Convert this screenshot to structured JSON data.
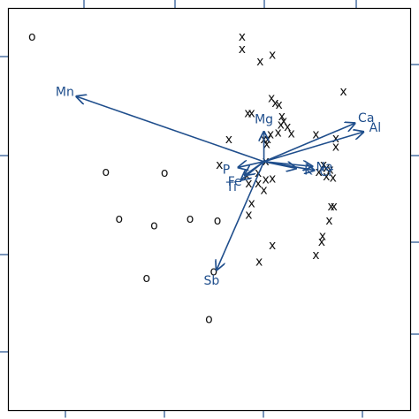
{
  "chart_data": {
    "type": "scatter",
    "title": "",
    "xlabel": "",
    "ylabel": "",
    "xlim": [
      -2.7,
      1.55
    ],
    "ylim": [
      -2.6,
      1.6
    ],
    "grid": false,
    "colors": {
      "points": "#111111",
      "vectors": "#1f4e8c",
      "frame": "#000000",
      "ticks": "#1f4e8c"
    },
    "series": [
      {
        "marker": "o",
        "points": [
          [
            -2.45,
            1.3
          ],
          [
            -1.67,
            -0.11
          ],
          [
            -1.05,
            -0.12
          ],
          [
            -1.53,
            -0.6
          ],
          [
            -1.16,
            -0.67
          ],
          [
            -0.78,
            -0.6
          ],
          [
            -0.49,
            -0.62
          ],
          [
            -1.24,
            -1.22
          ],
          [
            -0.53,
            -1.15
          ],
          [
            -0.58,
            -1.65
          ]
        ]
      },
      {
        "marker": "x",
        "points": [
          [
            -0.23,
            1.3
          ],
          [
            -0.23,
            1.17
          ],
          [
            0.09,
            1.11
          ],
          [
            -0.04,
            1.04
          ],
          [
            0.84,
            0.73
          ],
          [
            0.08,
            0.66
          ],
          [
            0.12,
            0.61
          ],
          [
            0.16,
            0.59
          ],
          [
            -0.17,
            0.5
          ],
          [
            -0.13,
            0.5
          ],
          [
            0.19,
            0.47
          ],
          [
            0.21,
            0.42
          ],
          [
            0.18,
            0.38
          ],
          [
            0.25,
            0.36
          ],
          [
            0.15,
            0.3
          ],
          [
            0.07,
            0.28
          ],
          [
            0.29,
            0.29
          ],
          [
            0.0,
            0.23
          ],
          [
            0.04,
            0.23
          ],
          [
            0.76,
            0.24
          ],
          [
            0.55,
            0.28
          ],
          [
            -0.37,
            0.23
          ],
          [
            0.76,
            0.15
          ],
          [
            0.03,
            0.18
          ],
          [
            -0.47,
            -0.04
          ],
          [
            0.02,
            0.0
          ],
          [
            0.63,
            -0.04
          ],
          [
            0.66,
            -0.07
          ],
          [
            0.58,
            -0.11
          ],
          [
            0.7,
            -0.09
          ],
          [
            -0.06,
            -0.12
          ],
          [
            0.66,
            -0.16
          ],
          [
            0.73,
            -0.17
          ],
          [
            -0.18,
            -0.15
          ],
          [
            0.02,
            -0.19
          ],
          [
            0.09,
            -0.18
          ],
          [
            -0.16,
            -0.23
          ],
          [
            -0.06,
            -0.23
          ],
          [
            0.0,
            -0.3
          ],
          [
            -0.13,
            -0.44
          ],
          [
            -0.16,
            -0.56
          ],
          [
            0.71,
            -0.47
          ],
          [
            0.74,
            -0.47
          ],
          [
            0.69,
            -0.62
          ],
          [
            0.62,
            -0.78
          ],
          [
            0.61,
            -0.84
          ],
          [
            0.55,
            -0.98
          ],
          [
            0.09,
            -0.88
          ],
          [
            -0.05,
            -1.05
          ]
        ]
      }
    ],
    "vectors": [
      {
        "name": "Mn",
        "x": -1.98,
        "y": 0.68
      },
      {
        "name": "Ca",
        "x": 0.96,
        "y": 0.4
      },
      {
        "name": "Al",
        "x": 1.05,
        "y": 0.31
      },
      {
        "name": "Mg",
        "x": 0.0,
        "y": 0.31
      },
      {
        "name": "P",
        "x": -0.27,
        "y": -0.06
      },
      {
        "name": "Fe",
        "x": -0.2,
        "y": -0.14
      },
      {
        "name": "Ti",
        "x": -0.24,
        "y": -0.19
      },
      {
        "name": "K",
        "x": 0.34,
        "y": -0.07
      },
      {
        "name": "Na",
        "x": 0.51,
        "y": -0.05
      },
      {
        "name": "Cr",
        "x": 0.53,
        "y": -0.09
      },
      {
        "name": "Sb",
        "x": -0.5,
        "y": -1.13
      }
    ]
  }
}
